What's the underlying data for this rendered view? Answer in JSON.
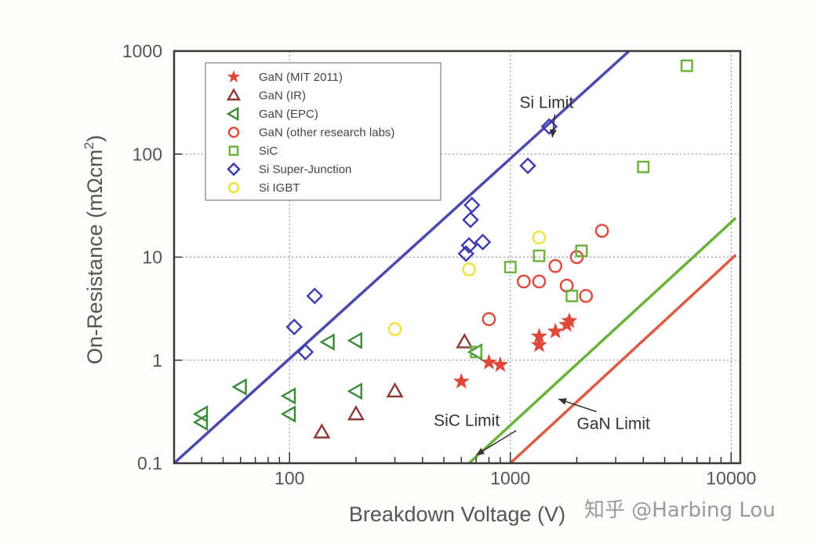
{
  "chart_data": {
    "type": "scatter",
    "title": "",
    "xlabel": "Breakdown Voltage (V)",
    "ylabel_main": "On-Resistance (mΩcm",
    "ylabel_sup": "2",
    "ylabel_close": ")",
    "xscale": "log",
    "yscale": "log",
    "xlim": [
      30,
      11000
    ],
    "ylim": [
      0.1,
      1000
    ],
    "xticks": [
      {
        "v": 100,
        "label": "100"
      },
      {
        "v": 1000,
        "label": "1000"
      },
      {
        "v": 10000,
        "label": "10000"
      }
    ],
    "yticks": [
      {
        "v": 0.1,
        "label": "0.1"
      },
      {
        "v": 1,
        "label": "1"
      },
      {
        "v": 10,
        "label": "10"
      },
      {
        "v": 100,
        "label": "100"
      },
      {
        "v": 1000,
        "label": "1000"
      }
    ],
    "grid": true,
    "legend_position": "top-left",
    "series": [
      {
        "name": "GaN (MIT 2011)",
        "marker": "star",
        "color": "#e0463a",
        "points": [
          [
            600,
            0.62
          ],
          [
            800,
            0.95
          ],
          [
            900,
            0.9
          ],
          [
            1350,
            1.4
          ],
          [
            1350,
            1.7
          ],
          [
            1600,
            1.9
          ],
          [
            1800,
            2.2
          ],
          [
            1850,
            2.4
          ]
        ]
      },
      {
        "name": "GaN (IR)",
        "marker": "triangle-up",
        "color": "#8b3a36",
        "points": [
          [
            140,
            0.2
          ],
          [
            200,
            0.3
          ],
          [
            300,
            0.5
          ],
          [
            620,
            1.5
          ]
        ]
      },
      {
        "name": "GaN (EPC)",
        "marker": "triangle-left",
        "color": "#3a8a3a",
        "points": [
          [
            40,
            0.25
          ],
          [
            40,
            0.3
          ],
          [
            60,
            0.55
          ],
          [
            100,
            0.3
          ],
          [
            100,
            0.45
          ],
          [
            150,
            1.5
          ],
          [
            200,
            0.5
          ],
          [
            200,
            1.55
          ],
          [
            700,
            1.2
          ]
        ]
      },
      {
        "name": "GaN (other research labs)",
        "marker": "circle",
        "color": "#e0463a",
        "points": [
          [
            800,
            2.5
          ],
          [
            1150,
            5.8
          ],
          [
            1350,
            5.8
          ],
          [
            1600,
            8.2
          ],
          [
            1800,
            5.3
          ],
          [
            2000,
            10
          ],
          [
            2200,
            4.2
          ],
          [
            2600,
            18
          ]
        ]
      },
      {
        "name": "SiC",
        "marker": "square",
        "color": "#6ab33a",
        "points": [
          [
            700,
            1.2
          ],
          [
            1000,
            8
          ],
          [
            1350,
            10.3
          ],
          [
            1900,
            4.2
          ],
          [
            2100,
            11.5
          ],
          [
            4000,
            75
          ],
          [
            6300,
            720
          ]
        ]
      },
      {
        "name": "Si Super-Junction",
        "marker": "diamond",
        "color": "#3a3ab0",
        "points": [
          [
            105,
            2.1
          ],
          [
            118,
            1.2
          ],
          [
            130,
            4.2
          ],
          [
            630,
            10.8
          ],
          [
            650,
            13
          ],
          [
            660,
            23
          ],
          [
            670,
            32
          ],
          [
            750,
            14
          ],
          [
            1200,
            77
          ],
          [
            1500,
            185
          ]
        ]
      },
      {
        "name": "Si IGBT",
        "marker": "circle",
        "color": "#f2e23a",
        "points": [
          [
            300,
            2.0
          ],
          [
            650,
            7.6
          ],
          [
            1350,
            15.5
          ]
        ]
      }
    ],
    "limit_lines": [
      {
        "name": "Si Limit",
        "color": "#4a4aae",
        "p1": [
          30,
          0.1
        ],
        "p2": [
          3450,
          1000
        ]
      },
      {
        "name": "SiC Limit",
        "color": "#6ab33a",
        "p1": [
          650,
          0.1
        ],
        "p2": [
          10500,
          24
        ]
      },
      {
        "name": "GaN Limit",
        "color": "#df5a45",
        "p1": [
          1000,
          0.1
        ],
        "p2": [
          10500,
          10.5
        ]
      }
    ],
    "annotations": [
      {
        "text": "Si Limit",
        "x": 1100,
        "y": 280,
        "arrow_to": [
          1550,
          145
        ]
      },
      {
        "text": "SiC Limit",
        "x": 450,
        "y": 0.23,
        "arrow_to": [
          700,
          0.12
        ]
      },
      {
        "text": "GaN Limit",
        "x": 2000,
        "y": 0.215,
        "arrow_to": [
          1650,
          0.42
        ]
      }
    ]
  },
  "watermark": "知乎 @Harbing Lou"
}
